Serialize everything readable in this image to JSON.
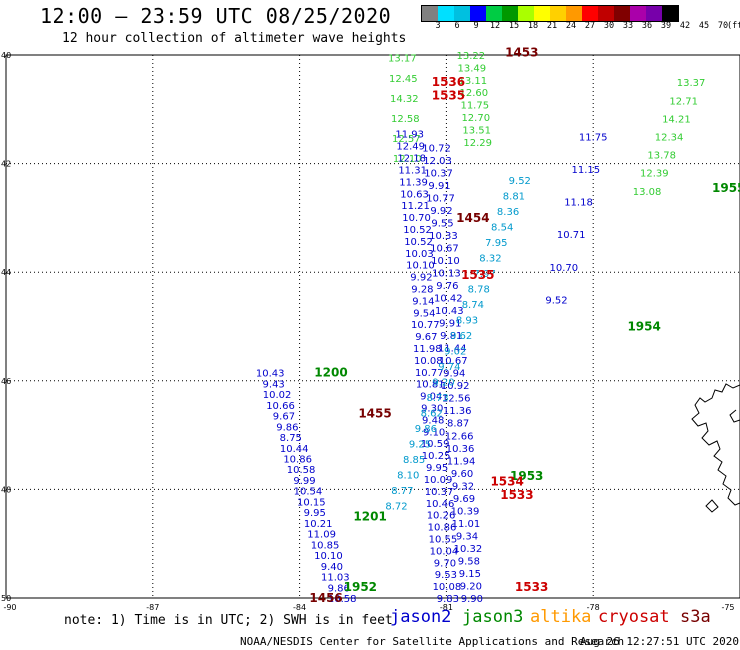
{
  "header": {
    "title": "12:00 – 23:59 UTC 08/25/2020",
    "subtitle": "12 hour collection of altimeter wave heights"
  },
  "colorbar": {
    "labels": [
      "3",
      "6",
      "9",
      "12",
      "15",
      "18",
      "21",
      "24",
      "27",
      "30",
      "33",
      "36",
      "39",
      "42",
      "45",
      "70"
    ],
    "unit": "(ft)",
    "colors": [
      "#808080",
      "#00e0ff",
      "#00c0e0",
      "#0000ff",
      "#00cc44",
      "#009900",
      "#aaff00",
      "#ffff00",
      "#ffd000",
      "#ff9900",
      "#ff0000",
      "#c00000",
      "#800000",
      "#aa00aa",
      "#7700aa",
      "#000000"
    ]
  },
  "axes": {
    "lat_labels": [
      "40",
      "42",
      "44",
      "46",
      "48",
      "50"
    ],
    "lon_labels": [
      "-90",
      "-87",
      "-84",
      "-81",
      "-78",
      "-75"
    ]
  },
  "colors": {
    "jason2": "#0000cc",
    "jason3": "#008800",
    "altika": "#ff9900",
    "cryosat": "#cc0000",
    "s3a": "#770000",
    "c_light": "#33cc33",
    "c_cyan": "#0099cc"
  },
  "tracks": [
    {
      "color": "c_light",
      "lon": -81.9,
      "lat0": 40.05,
      "lat1": 41.9,
      "values": [
        "13.17",
        "12.45",
        "14.32",
        "12.58",
        "12.57",
        "12.10"
      ]
    },
    {
      "color": "jason2",
      "lon": -81.75,
      "lat0": 41.45,
      "lat1": 50.0,
      "values": [
        "11.93",
        "12.49",
        "12.18",
        "11.31",
        "11.39",
        "10.63",
        "11.21",
        "10.70",
        "10.52",
        "10.52",
        "10.03",
        "10.10",
        "9.92",
        "9.28",
        "9.14",
        "9.54",
        "10.77",
        "9.67",
        "11.98",
        "10.08",
        "10.77",
        "10.81",
        "9.04",
        "9.30",
        "9.48",
        "9.10",
        "10.59",
        "10.25",
        "9.95",
        "10.09",
        "10.37",
        "10.46",
        "10.26",
        "10.86",
        "10.55",
        "10.04",
        "9.70",
        "9.53",
        "10.08",
        "9.83"
      ]
    },
    {
      "color": "c_light",
      "lon": -80.5,
      "lat0": 40.0,
      "lat1": 41.6,
      "values": [
        "13.22",
        "13.49",
        "13.11",
        "12.60",
        "11.75",
        "12.70",
        "13.51",
        "12.29"
      ]
    },
    {
      "color": "jason2",
      "lon": -81.2,
      "lat0": 41.7,
      "lat1": 50.0,
      "values": [
        "10.72",
        "12.03",
        "10.37",
        "9.91",
        "10.77",
        "9.92",
        "9.55",
        "10.33",
        "10.67",
        "10.10",
        "10.13",
        "9.76",
        "10.42",
        "10.43",
        "9.91",
        "9.81",
        "11.44",
        "10.67",
        "9.94",
        "10.92",
        "12.56",
        "11.36",
        "8.87",
        "12.66",
        "10.36",
        "11.94",
        "9.60",
        "9.32",
        "9.69",
        "10.39",
        "11.01",
        "9.34",
        "10.32",
        "9.58",
        "9.15",
        "9.20",
        "9.90"
      ]
    },
    {
      "color": "jason2",
      "lon": -84.6,
      "lat0": 45.85,
      "lat1": 50.0,
      "values": [
        "10.43",
        "9.43",
        "10.02",
        "10.66",
        "9.67",
        "9.86",
        "8.75",
        "10.44",
        "10.86",
        "10.58",
        "9.99",
        "10.54",
        "10.15",
        "9.95",
        "10.21",
        "11.09",
        "10.85",
        "10.10",
        "9.40",
        "11.03",
        "9.86",
        "10.58"
      ]
    },
    {
      "color": "c_cyan",
      "lon": -79.5,
      "lat0": 42.3,
      "lat1": 48.3,
      "values": [
        "9.52",
        "8.81",
        "8.36",
        "8.54",
        "7.95",
        "8.32",
        "7.97",
        "8.78",
        "8.74",
        "8.93",
        "9.62",
        "9.02",
        "9.74",
        "9.20",
        "8.73",
        "8.62",
        "9.86",
        "9.25",
        "8.85",
        "8.10",
        "8.77",
        "8.72"
      ]
    },
    {
      "color": "jason2",
      "lon": -78.0,
      "lat0": 41.5,
      "lat1": 44.5,
      "values": [
        "11.75",
        "11.15",
        "11.18",
        "10.71",
        "10.70",
        "9.52"
      ]
    },
    {
      "color": "c_light",
      "lon": -76.0,
      "lat0": 40.5,
      "lat1": 42.5,
      "values": [
        "13.37",
        "12.71",
        "14.21",
        "12.34",
        "13.78",
        "12.39",
        "13.08"
      ]
    }
  ],
  "time_labels": [
    {
      "text": "1453",
      "color": "s3a",
      "lon": -79.8,
      "lat": 39.95
    },
    {
      "text": "1536",
      "color": "cryosat",
      "lon": -81.3,
      "lat": 40.5
    },
    {
      "text": "1535",
      "color": "cryosat",
      "lon": -81.3,
      "lat": 40.75
    },
    {
      "text": "1454",
      "color": "s3a",
      "lon": -80.8,
      "lat": 43.0
    },
    {
      "text": "1535",
      "color": "cryosat",
      "lon": -80.7,
      "lat": 44.05
    },
    {
      "text": "1954",
      "color": "jason3",
      "lon": -77.3,
      "lat": 45.0
    },
    {
      "text": "1955",
      "color": "jason3",
      "lon": -75.0,
      "lat": 42.45
    },
    {
      "text": "1200",
      "color": "jason3",
      "lon": -83.7,
      "lat": 45.85
    },
    {
      "text": "1455",
      "color": "s3a",
      "lon": -82.8,
      "lat": 46.6
    },
    {
      "text": "1953",
      "color": "jason3",
      "lon": -79.7,
      "lat": 47.75
    },
    {
      "text": "1534",
      "color": "cryosat",
      "lon": -80.1,
      "lat": 47.85
    },
    {
      "text": "1533",
      "color": "cryosat",
      "lon": -79.9,
      "lat": 48.1
    },
    {
      "text": "1201",
      "color": "jason3",
      "lon": -82.9,
      "lat": 48.5
    },
    {
      "text": "1952",
      "color": "jason3",
      "lon": -83.1,
      "lat": 49.8
    },
    {
      "text": "1456",
      "color": "s3a",
      "lon": -83.8,
      "lat": 50.0
    },
    {
      "text": "1533",
      "color": "cryosat",
      "lon": -79.6,
      "lat": 49.8
    }
  ],
  "legend": {
    "note": "note: 1) Time is in UTC; 2) SWH is in feet",
    "jason2": "jason2",
    "jason3": "jason3",
    "altika": "altika",
    "cryosat": "cryosat",
    "s3a": "s3a"
  },
  "footer": {
    "credit": "NOAA/NESDIS Center for Satellite Applications and Research",
    "timestamp": "Aug 26 12:27:51 UTC 2020"
  }
}
